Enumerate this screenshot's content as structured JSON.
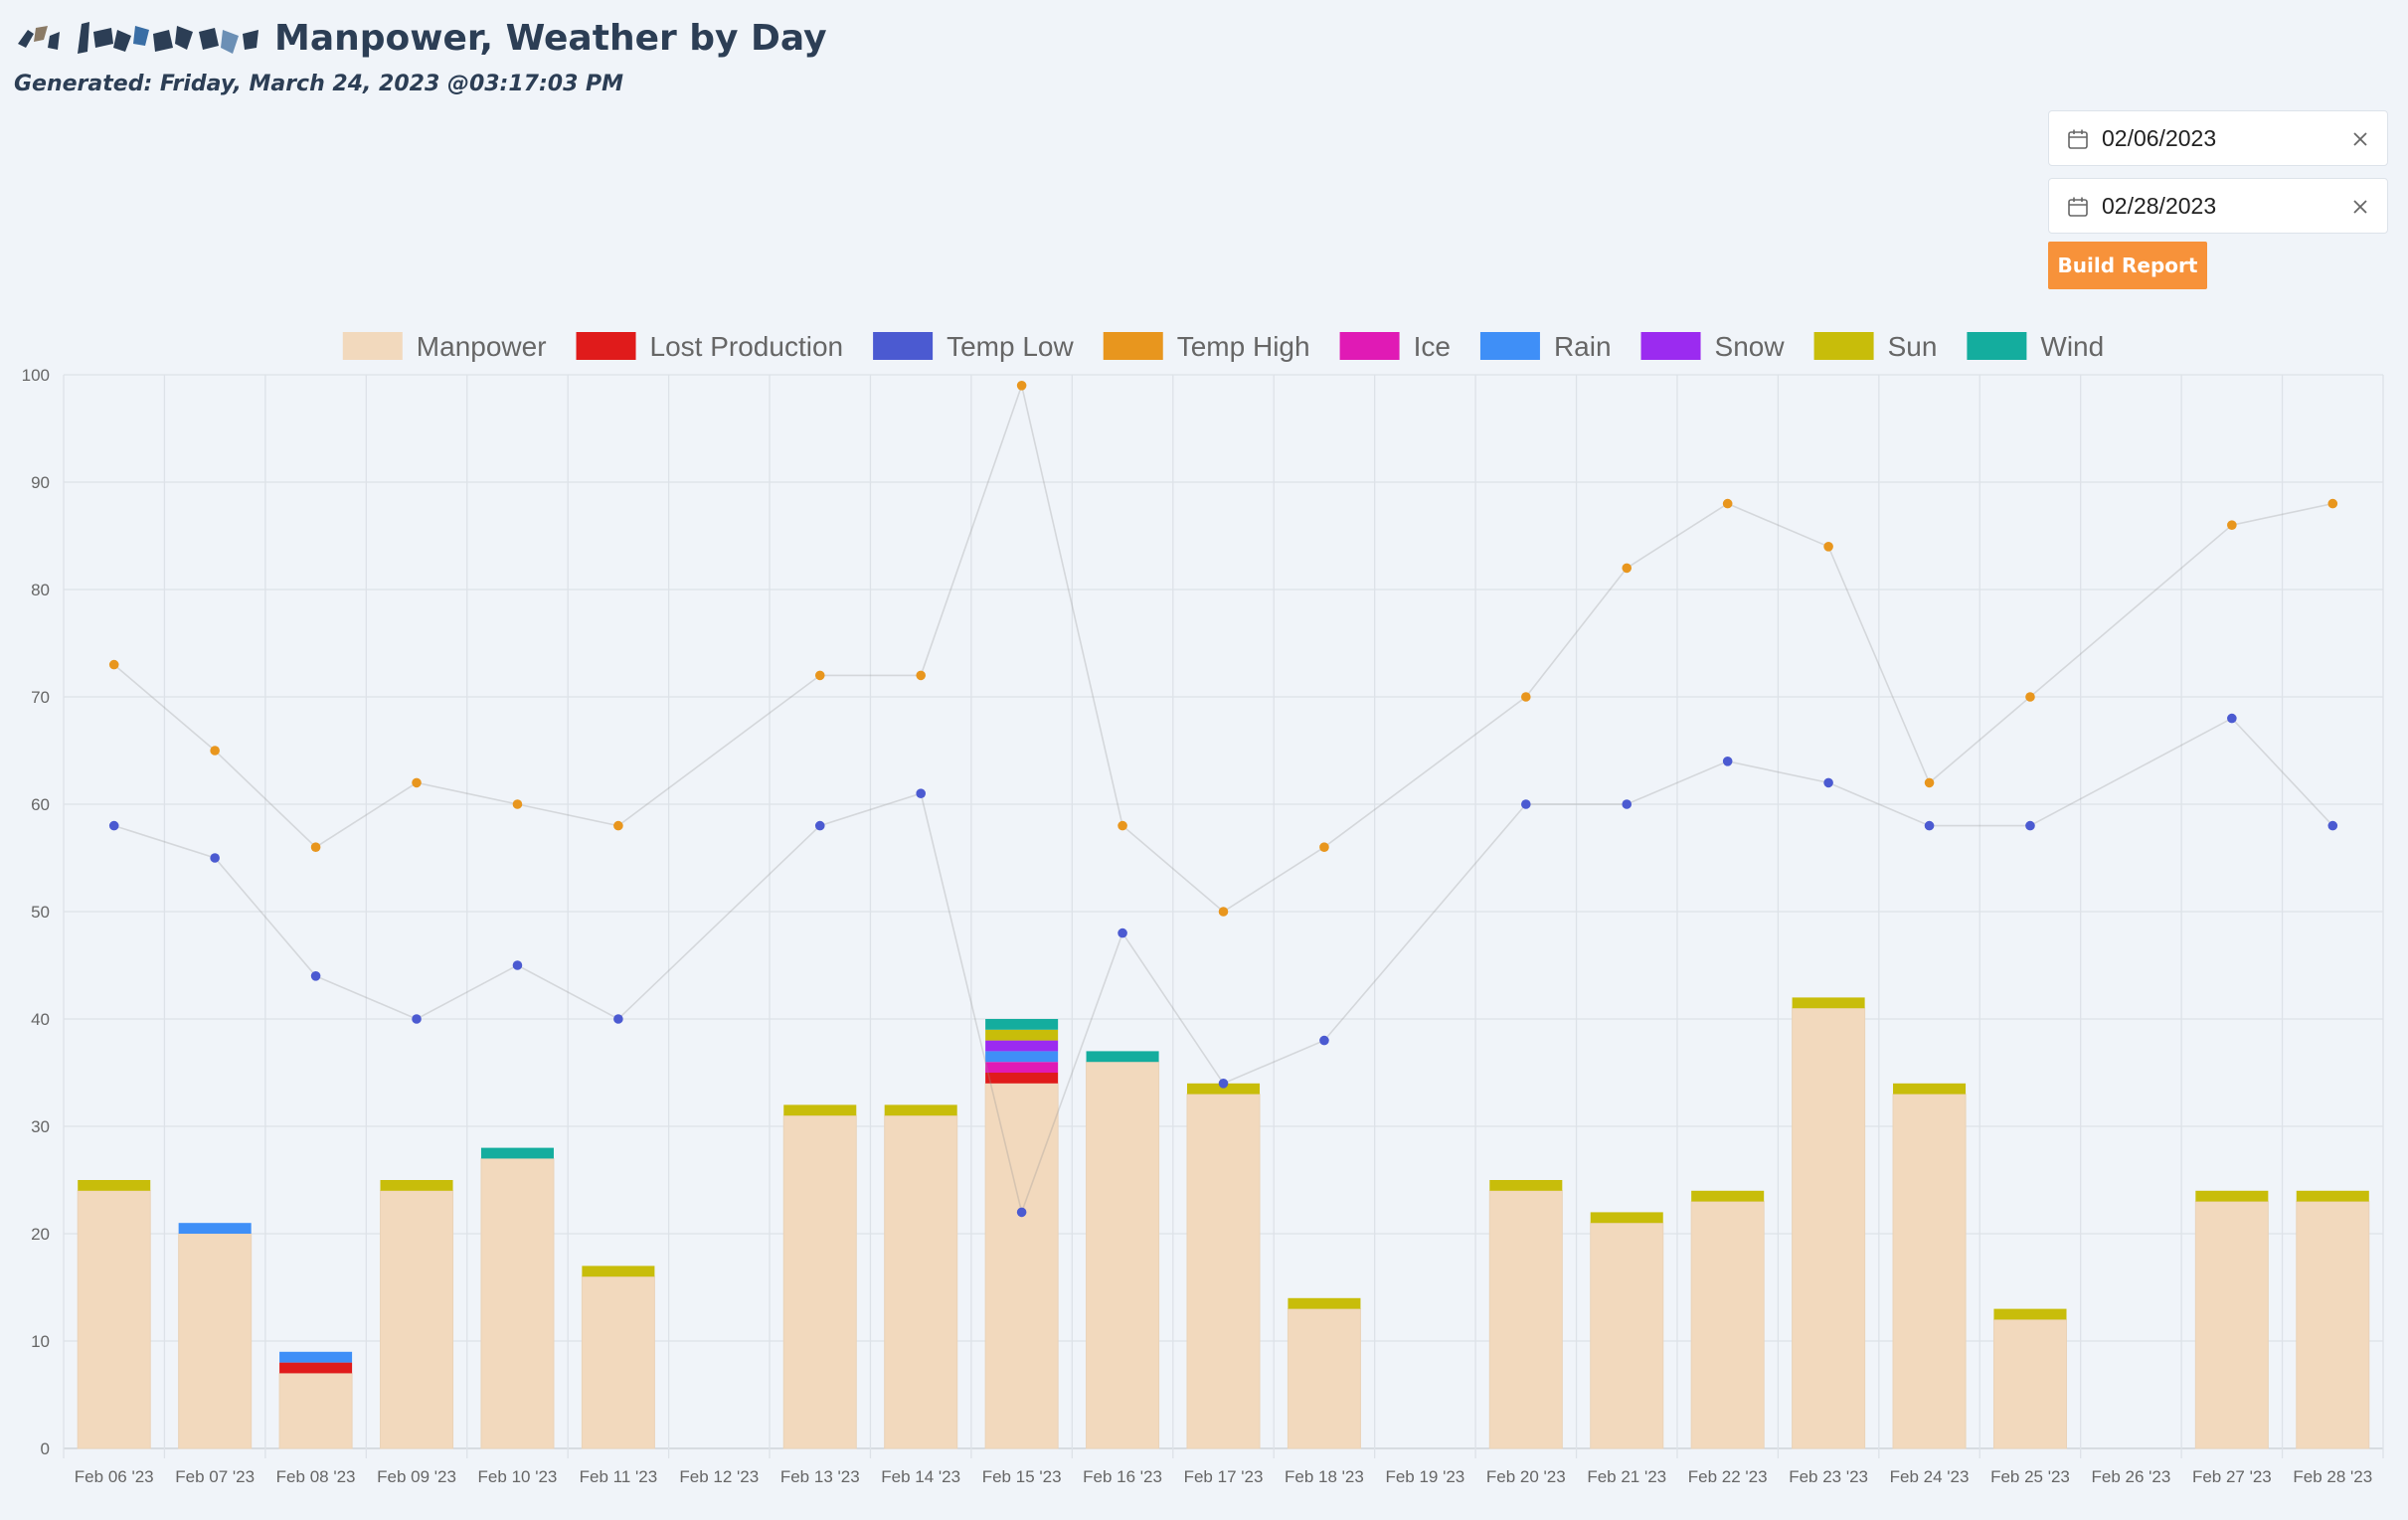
{
  "header": {
    "title": "Manpower, Weather by Day",
    "generated": "Generated: Friday, March 24, 2023 @03:17:03 PM"
  },
  "controls": {
    "start_date": "02/06/2023",
    "end_date": "02/28/2023",
    "build_label": "Build Report"
  },
  "colors": {
    "manpower": "#f2d9bd",
    "lost_production": "#e01b1b",
    "temp_low": "#4b5ad1",
    "temp_high": "#e8961e",
    "ice": "#e01ab5",
    "rain": "#3f8ff7",
    "snow": "#9b2bf0",
    "sun": "#c8bd0a",
    "wind": "#14ad9e",
    "button": "#f7923a"
  },
  "chart_data": {
    "type": "bar",
    "grid": true,
    "legend_position": "top",
    "ylim": [
      0,
      100
    ],
    "yticks": [
      "0",
      "10",
      "20",
      "30",
      "40",
      "50",
      "60",
      "70",
      "80",
      "90",
      "100"
    ],
    "categories": [
      "Feb 06 '23",
      "Feb 07 '23",
      "Feb 08 '23",
      "Feb 09 '23",
      "Feb 10 '23",
      "Feb 11 '23",
      "Feb 12 '23",
      "Feb 13 '23",
      "Feb 14 '23",
      "Feb 15 '23",
      "Feb 16 '23",
      "Feb 17 '23",
      "Feb 18 '23",
      "Feb 19 '23",
      "Feb 20 '23",
      "Feb 21 '23",
      "Feb 22 '23",
      "Feb 23 '23",
      "Feb 24 '23",
      "Feb 25 '23",
      "Feb 26 '23",
      "Feb 27 '23",
      "Feb 28 '23"
    ],
    "series": [
      {
        "name": "Manpower",
        "kind": "bar",
        "color": "#f2d9bd",
        "values": [
          24,
          20,
          7,
          24,
          27,
          16,
          null,
          31,
          31,
          34,
          36,
          33,
          13,
          null,
          24,
          21,
          23,
          41,
          33,
          12,
          null,
          23,
          23
        ]
      },
      {
        "name": "Lost Production",
        "kind": "bar",
        "color": "#e01b1b",
        "values": [
          null,
          null,
          1,
          null,
          null,
          null,
          null,
          null,
          null,
          1,
          null,
          null,
          null,
          null,
          null,
          null,
          null,
          null,
          null,
          null,
          null,
          null,
          null
        ]
      },
      {
        "name": "Temp Low",
        "kind": "line",
        "color": "#4b5ad1",
        "values": [
          58,
          55,
          44,
          40,
          45,
          40,
          null,
          58,
          61,
          22,
          48,
          34,
          38,
          null,
          60,
          60,
          64,
          62,
          58,
          58,
          null,
          68,
          58
        ]
      },
      {
        "name": "Temp High",
        "kind": "line",
        "color": "#e8961e",
        "values": [
          73,
          65,
          56,
          62,
          60,
          58,
          null,
          72,
          72,
          99,
          58,
          50,
          56,
          null,
          70,
          82,
          88,
          84,
          62,
          70,
          null,
          86,
          88
        ]
      },
      {
        "name": "Ice",
        "kind": "bar",
        "color": "#e01ab5",
        "values": [
          null,
          null,
          null,
          null,
          null,
          null,
          null,
          null,
          null,
          1,
          null,
          null,
          null,
          null,
          null,
          null,
          null,
          null,
          null,
          null,
          null,
          null,
          null
        ]
      },
      {
        "name": "Rain",
        "kind": "bar",
        "color": "#3f8ff7",
        "values": [
          null,
          1,
          1,
          null,
          null,
          null,
          null,
          null,
          null,
          1,
          null,
          null,
          null,
          null,
          null,
          null,
          null,
          null,
          null,
          null,
          null,
          null,
          null
        ]
      },
      {
        "name": "Snow",
        "kind": "bar",
        "color": "#9b2bf0",
        "values": [
          null,
          null,
          null,
          null,
          null,
          null,
          null,
          null,
          null,
          1,
          null,
          null,
          null,
          null,
          null,
          null,
          null,
          null,
          null,
          null,
          null,
          null,
          null
        ]
      },
      {
        "name": "Sun",
        "kind": "bar",
        "color": "#c8bd0a",
        "values": [
          1,
          null,
          null,
          1,
          null,
          1,
          null,
          1,
          1,
          1,
          null,
          1,
          1,
          null,
          1,
          1,
          1,
          1,
          1,
          1,
          null,
          1,
          1
        ]
      },
      {
        "name": "Wind",
        "kind": "bar",
        "color": "#14ad9e",
        "values": [
          null,
          null,
          null,
          null,
          1,
          null,
          null,
          null,
          null,
          1,
          1,
          null,
          null,
          null,
          null,
          null,
          null,
          null,
          null,
          null,
          null,
          null,
          null
        ]
      }
    ]
  }
}
